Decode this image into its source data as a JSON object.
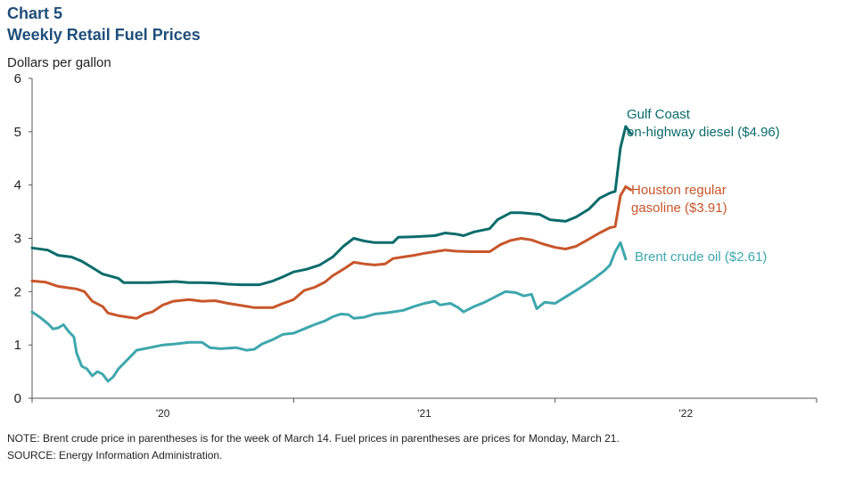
{
  "chart_data": {
    "type": "line",
    "title": "Chart 5",
    "subtitle": "Weekly Retail Fuel Prices",
    "ylabel": "Dollars per gallon",
    "ylim": [
      0,
      6
    ],
    "yticks": [
      "0",
      "1",
      "2",
      "3",
      "4",
      "5",
      "6"
    ],
    "xlim": [
      2019.5,
      2022.5
    ],
    "xticks": [
      {
        "label": "'20",
        "x": 2020.0
      },
      {
        "label": "'21",
        "x": 2021.0
      },
      {
        "label": "'22",
        "x": 2022.0
      }
    ],
    "grid": false,
    "series": [
      {
        "name": "Gulf Coast on-highway diesel ($4.96)",
        "label_lines": [
          "Gulf Coast",
          "on-highway diesel ($4.96)"
        ],
        "color": "#0b6b6b",
        "points": [
          [
            2019.5,
            2.82
          ],
          [
            2019.56,
            2.78
          ],
          [
            2019.6,
            2.68
          ],
          [
            2019.65,
            2.65
          ],
          [
            2019.69,
            2.57
          ],
          [
            2019.73,
            2.45
          ],
          [
            2019.77,
            2.33
          ],
          [
            2019.83,
            2.25
          ],
          [
            2019.85,
            2.17
          ],
          [
            2019.95,
            2.17
          ],
          [
            2020.0,
            2.18
          ],
          [
            2020.05,
            2.19
          ],
          [
            2020.1,
            2.17
          ],
          [
            2020.15,
            2.17
          ],
          [
            2020.2,
            2.16
          ],
          [
            2020.25,
            2.14
          ],
          [
            2020.3,
            2.13
          ],
          [
            2020.37,
            2.13
          ],
          [
            2020.42,
            2.2
          ],
          [
            2020.46,
            2.28
          ],
          [
            2020.5,
            2.37
          ],
          [
            2020.55,
            2.42
          ],
          [
            2020.6,
            2.5
          ],
          [
            2020.65,
            2.65
          ],
          [
            2020.69,
            2.85
          ],
          [
            2020.73,
            3.0
          ],
          [
            2020.77,
            2.95
          ],
          [
            2020.81,
            2.92
          ],
          [
            2020.88,
            2.92
          ],
          [
            2020.9,
            3.02
          ],
          [
            2020.96,
            3.03
          ],
          [
            2021.04,
            3.05
          ],
          [
            2021.08,
            3.1
          ],
          [
            2021.12,
            3.08
          ],
          [
            2021.15,
            3.05
          ],
          [
            2021.19,
            3.12
          ],
          [
            2021.25,
            3.18
          ],
          [
            2021.28,
            3.35
          ],
          [
            2021.33,
            3.48
          ],
          [
            2021.37,
            3.48
          ],
          [
            2021.44,
            3.45
          ],
          [
            2021.48,
            3.35
          ],
          [
            2021.54,
            3.32
          ],
          [
            2021.58,
            3.4
          ],
          [
            2021.63,
            3.55
          ],
          [
            2021.67,
            3.75
          ],
          [
            2021.71,
            3.85
          ],
          [
            2021.73,
            3.88
          ],
          [
            2021.75,
            4.7
          ],
          [
            2021.77,
            5.1
          ],
          [
            2021.79,
            4.96
          ]
        ]
      },
      {
        "name": "Houston regular gasoline ($3.91)",
        "label_lines": [
          "Houston regular",
          "gasoline ($3.91)"
        ],
        "color": "#c8562b",
        "points": [
          [
            2019.5,
            2.2
          ],
          [
            2019.55,
            2.18
          ],
          [
            2019.6,
            2.1
          ],
          [
            2019.64,
            2.07
          ],
          [
            2019.67,
            2.05
          ],
          [
            2019.7,
            2.0
          ],
          [
            2019.73,
            1.82
          ],
          [
            2019.77,
            1.72
          ],
          [
            2019.79,
            1.6
          ],
          [
            2019.83,
            1.55
          ],
          [
            2019.87,
            1.52
          ],
          [
            2019.9,
            1.5
          ],
          [
            2019.93,
            1.58
          ],
          [
            2019.96,
            1.62
          ],
          [
            2020.0,
            1.75
          ],
          [
            2020.04,
            1.82
          ],
          [
            2020.1,
            1.85
          ],
          [
            2020.15,
            1.82
          ],
          [
            2020.2,
            1.83
          ],
          [
            2020.25,
            1.78
          ],
          [
            2020.3,
            1.74
          ],
          [
            2020.35,
            1.7
          ],
          [
            2020.42,
            1.7
          ],
          [
            2020.46,
            1.78
          ],
          [
            2020.5,
            1.85
          ],
          [
            2020.54,
            2.02
          ],
          [
            2020.58,
            2.08
          ],
          [
            2020.62,
            2.18
          ],
          [
            2020.65,
            2.3
          ],
          [
            2020.7,
            2.45
          ],
          [
            2020.73,
            2.55
          ],
          [
            2020.77,
            2.52
          ],
          [
            2020.81,
            2.5
          ],
          [
            2020.85,
            2.52
          ],
          [
            2020.88,
            2.62
          ],
          [
            2020.92,
            2.65
          ],
          [
            2020.96,
            2.68
          ],
          [
            2021.0,
            2.72
          ],
          [
            2021.04,
            2.75
          ],
          [
            2021.08,
            2.78
          ],
          [
            2021.12,
            2.76
          ],
          [
            2021.18,
            2.75
          ],
          [
            2021.25,
            2.75
          ],
          [
            2021.29,
            2.88
          ],
          [
            2021.33,
            2.96
          ],
          [
            2021.37,
            3.0
          ],
          [
            2021.41,
            2.97
          ],
          [
            2021.45,
            2.9
          ],
          [
            2021.5,
            2.83
          ],
          [
            2021.54,
            2.8
          ],
          [
            2021.58,
            2.85
          ],
          [
            2021.62,
            2.96
          ],
          [
            2021.67,
            3.1
          ],
          [
            2021.71,
            3.2
          ],
          [
            2021.73,
            3.22
          ],
          [
            2021.75,
            3.8
          ],
          [
            2021.77,
            3.97
          ],
          [
            2021.79,
            3.91
          ]
        ]
      },
      {
        "name": "Brent crude oil ($2.61)",
        "label_lines": [
          "Brent crude oil ($2.61)"
        ],
        "color": "#3ea7ad",
        "points": [
          [
            2019.5,
            1.62
          ],
          [
            2019.53,
            1.52
          ],
          [
            2019.56,
            1.4
          ],
          [
            2019.58,
            1.3
          ],
          [
            2019.6,
            1.32
          ],
          [
            2019.62,
            1.38
          ],
          [
            2019.64,
            1.25
          ],
          [
            2019.66,
            1.15
          ],
          [
            2019.67,
            0.85
          ],
          [
            2019.69,
            0.6
          ],
          [
            2019.71,
            0.55
          ],
          [
            2019.73,
            0.42
          ],
          [
            2019.75,
            0.5
          ],
          [
            2019.77,
            0.45
          ],
          [
            2019.79,
            0.32
          ],
          [
            2019.81,
            0.4
          ],
          [
            2019.83,
            0.55
          ],
          [
            2019.85,
            0.65
          ],
          [
            2019.88,
            0.8
          ],
          [
            2019.9,
            0.9
          ],
          [
            2019.95,
            0.95
          ],
          [
            2020.0,
            1.0
          ],
          [
            2020.05,
            1.02
          ],
          [
            2020.1,
            1.05
          ],
          [
            2020.15,
            1.05
          ],
          [
            2020.18,
            0.95
          ],
          [
            2020.22,
            0.93
          ],
          [
            2020.28,
            0.95
          ],
          [
            2020.32,
            0.9
          ],
          [
            2020.35,
            0.92
          ],
          [
            2020.38,
            1.02
          ],
          [
            2020.42,
            1.1
          ],
          [
            2020.46,
            1.2
          ],
          [
            2020.5,
            1.22
          ],
          [
            2020.54,
            1.3
          ],
          [
            2020.58,
            1.38
          ],
          [
            2020.62,
            1.45
          ],
          [
            2020.65,
            1.53
          ],
          [
            2020.68,
            1.58
          ],
          [
            2020.71,
            1.57
          ],
          [
            2020.73,
            1.5
          ],
          [
            2020.77,
            1.52
          ],
          [
            2020.81,
            1.58
          ],
          [
            2020.85,
            1.6
          ],
          [
            2020.88,
            1.62
          ],
          [
            2020.92,
            1.65
          ],
          [
            2020.96,
            1.72
          ],
          [
            2021.0,
            1.78
          ],
          [
            2021.04,
            1.82
          ],
          [
            2021.06,
            1.75
          ],
          [
            2021.1,
            1.78
          ],
          [
            2021.13,
            1.7
          ],
          [
            2021.15,
            1.62
          ],
          [
            2021.19,
            1.72
          ],
          [
            2021.23,
            1.8
          ],
          [
            2021.27,
            1.9
          ],
          [
            2021.31,
            2.0
          ],
          [
            2021.35,
            1.98
          ],
          [
            2021.38,
            1.92
          ],
          [
            2021.41,
            1.95
          ],
          [
            2021.43,
            1.68
          ],
          [
            2021.46,
            1.8
          ],
          [
            2021.5,
            1.78
          ],
          [
            2021.54,
            1.9
          ],
          [
            2021.58,
            2.02
          ],
          [
            2021.62,
            2.15
          ],
          [
            2021.65,
            2.25
          ],
          [
            2021.69,
            2.4
          ],
          [
            2021.71,
            2.5
          ],
          [
            2021.73,
            2.75
          ],
          [
            2021.75,
            2.92
          ],
          [
            2021.77,
            2.61
          ]
        ]
      }
    ]
  },
  "footer": {
    "note": "NOTE: Brent crude price in parentheses is for the week of March 14. Fuel prices in parentheses are prices for Monday, March 21.",
    "source": "SOURCE: Energy Information Administration."
  }
}
